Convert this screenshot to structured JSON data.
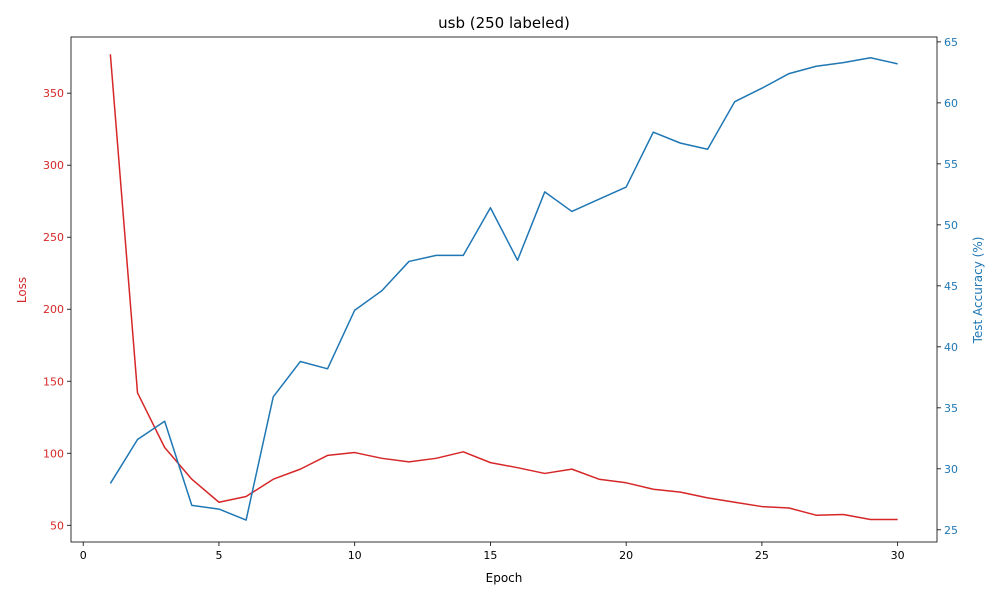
{
  "chart_data": {
    "type": "line",
    "title": "usb (250 labeled)",
    "xlabel": "Epoch",
    "ylabel_left": "Loss",
    "ylabel_right": "Test Accuracy (%)",
    "x": [
      1,
      2,
      3,
      4,
      5,
      6,
      7,
      8,
      9,
      10,
      11,
      12,
      13,
      14,
      15,
      16,
      17,
      18,
      19,
      20,
      21,
      22,
      23,
      24,
      25,
      26,
      27,
      28,
      29,
      30
    ],
    "xlim": [
      -0.45,
      31.45
    ],
    "xticks": [
      0,
      5,
      10,
      15,
      20,
      25,
      30
    ],
    "ylim_left": [
      38.4,
      389.0
    ],
    "yticks_left": [
      50,
      100,
      150,
      200,
      250,
      300,
      350
    ],
    "ylim_right": [
      24.0,
      65.4
    ],
    "yticks_right": [
      25,
      30,
      35,
      40,
      45,
      50,
      55,
      60,
      65
    ],
    "grid": false,
    "series": [
      {
        "axis": "left",
        "color": "#d62728",
        "values": [
          377,
          142,
          104,
          82,
          66,
          70,
          82,
          89,
          98.5,
          100.5,
          96.5,
          94,
          96.5,
          101,
          93.5,
          90,
          86,
          89,
          82,
          79.5,
          75,
          73,
          69,
          66,
          63,
          62,
          57,
          57.5,
          54,
          54
        ]
      },
      {
        "axis": "right",
        "color": "#1f77b4",
        "values": [
          28.8,
          32.4,
          33.9,
          27.0,
          26.7,
          25.8,
          35.9,
          38.8,
          38.2,
          43.0,
          44.6,
          47.0,
          47.5,
          47.5,
          51.4,
          47.1,
          52.7,
          51.1,
          52.1,
          53.1,
          57.6,
          56.7,
          56.2,
          60.1,
          61.2,
          62.4,
          63.0,
          63.3,
          63.7,
          63.2
        ]
      }
    ]
  }
}
